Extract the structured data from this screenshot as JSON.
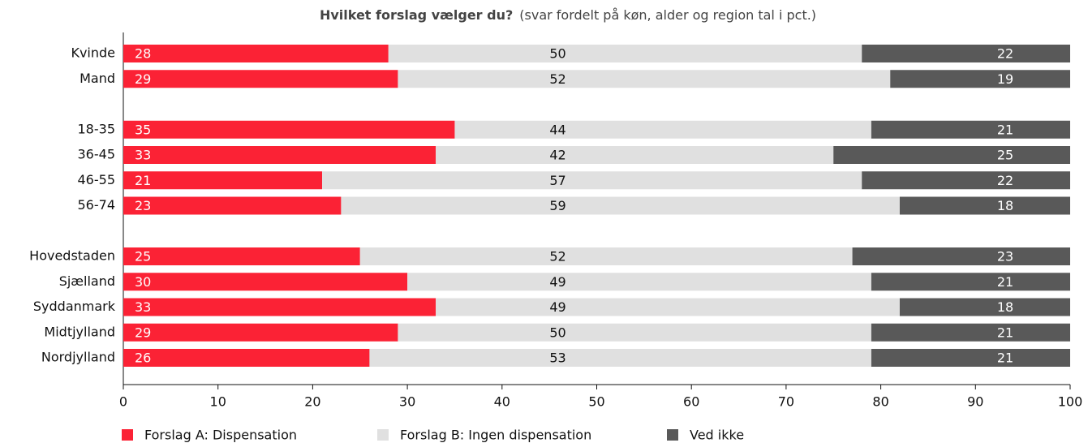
{
  "chart_data": {
    "type": "stacked_barh",
    "title": "Hvilket forslag vælger du?",
    "subtitle": "(svar fordelt på køn, alder og region tal i pct.)",
    "categories": [
      "Kvinde",
      "Mand",
      null,
      "18-35",
      "36-45",
      "46-55",
      "56-74",
      null,
      "Hovedstaden",
      "Sjælland",
      "Syddanmark",
      "Midtjylland",
      "Nordjylland"
    ],
    "series": [
      {
        "name": "Forslag A: Dispensation",
        "color": "#fb2235",
        "label_color": "#ffffff",
        "values": [
          28,
          29,
          null,
          35,
          33,
          21,
          23,
          null,
          25,
          30,
          33,
          29,
          26
        ]
      },
      {
        "name": "Forslag B: Ingen dispensation",
        "color": "#e0e0e0",
        "label_color": "#111111",
        "values": [
          50,
          52,
          null,
          44,
          42,
          57,
          59,
          null,
          52,
          49,
          49,
          50,
          53
        ]
      },
      {
        "name": "Ved ikke",
        "color": "#595959",
        "label_color": "#ffffff",
        "values": [
          22,
          19,
          null,
          21,
          25,
          22,
          18,
          null,
          23,
          21,
          18,
          21,
          21
        ]
      }
    ],
    "xlim": [
      0,
      100
    ],
    "xticks": [
      0,
      10,
      20,
      30,
      40,
      50,
      60,
      70,
      80,
      90,
      100
    ],
    "grid": false
  }
}
